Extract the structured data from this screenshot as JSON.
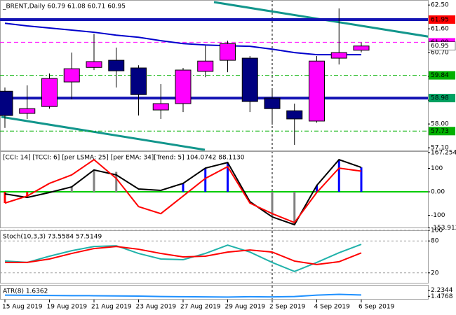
{
  "chart_data": [
    {
      "type": "candlestick",
      "title": "_BRENT,Daily  60.79 61.08 60.71 60.95",
      "categories": [
        "15 Aug 2019",
        null,
        "19 Aug 2019",
        null,
        "21 Aug 2019",
        null,
        "23 Aug 2019",
        null,
        "27 Aug 2019",
        null,
        "29 Aug 2019",
        null,
        "2 Sep 2019",
        null,
        "4 Sep 2019",
        null,
        "6 Sep 2019"
      ],
      "open": [
        59.24,
        58.4,
        58.66,
        59.59,
        60.14,
        60.41,
        60.12,
        58.53,
        58.77,
        59.99,
        60.41,
        60.49,
        58.98,
        58.5,
        58.11,
        60.49,
        60.79
      ],
      "high": [
        59.38,
        59.46,
        59.91,
        60.7,
        61.41,
        60.89,
        60.22,
        59.51,
        60.12,
        60.96,
        61.15,
        60.57,
        59.3,
        58.77,
        60.57,
        62.37,
        61.08
      ],
      "low": [
        57.85,
        58.19,
        58.58,
        58.93,
        60.04,
        59.38,
        58.32,
        58.19,
        58.45,
        59.77,
        59.96,
        58.45,
        57.97,
        57.21,
        58.05,
        60.25,
        60.71
      ],
      "close": [
        58.32,
        58.58,
        59.72,
        60.09,
        60.36,
        60.01,
        59.11,
        58.77,
        60.04,
        60.38,
        61.04,
        58.85,
        58.58,
        58.19,
        60.38,
        60.7,
        60.95
      ],
      "up_color": "#ff00ff",
      "down_color": "#000080",
      "series": [
        {
          "color": "#0000cc",
          "values": [
            61.81,
            61.71,
            61.63,
            61.55,
            61.47,
            61.36,
            61.28,
            61.15,
            61.04,
            60.99,
            60.96,
            60.94,
            60.83,
            60.7,
            60.62,
            60.62,
            60.62
          ]
        }
      ],
      "levels": [
        {
          "value": 61.95,
          "color": "#1414b4",
          "style": "solid",
          "label_color": "#ff0000"
        },
        {
          "value": 61.09,
          "color": "#ff00ff",
          "style": "dash",
          "label_color": "#ff00ff"
        },
        {
          "value": 59.84,
          "color": "#00b000",
          "style": "dashdot",
          "label_color": "#00b000"
        },
        {
          "value": 58.98,
          "color": "#1414b4",
          "style": "solid",
          "label_color": "#00a060"
        },
        {
          "value": 57.73,
          "color": "#00b000",
          "style": "dashdot",
          "label_color": "#00b000"
        }
      ],
      "ylim": [
        56.97,
        62.69
      ],
      "yticks": [
        {
          "value": 62.5,
          "label": "62.50"
        },
        {
          "value": 61.6,
          "label": "61.60"
        },
        {
          "value": 60.7,
          "label": "60.70"
        },
        {
          "value": 59.8,
          "label": "59.80"
        },
        {
          "value": 58.9,
          "label": "58.90"
        },
        {
          "value": 58,
          "label": "58.00"
        },
        {
          "value": 57.1,
          "label": "57.10"
        }
      ]
    },
    {
      "type": "cci",
      "title": "[CCI: 14] [TCCI: 6] [per LSMA: 25] [per EMA: 34][Trend: 5]  104.0742 88.1130",
      "histogram": {
        "values": [
          -48,
          -24,
          0,
          21,
          93,
          85,
          0,
          0,
          36,
          101,
          125,
          0,
          -107,
          -140,
          27,
          137,
          104
        ],
        "colors": [
          "#ff0000",
          "#ff0000",
          "#00cc00",
          "#808080",
          "#808080",
          "#808080",
          "#00cc00",
          "#00cc00",
          "#0000ff",
          "#0000ff",
          "#0000ff",
          "#00cc00",
          "#808080",
          "#808080",
          "#0000ff",
          "#0000ff",
          "#0000ff"
        ]
      },
      "zero_color": "#00cc00",
      "series": [
        {
          "color": "#000000",
          "values": [
            -9,
            -24,
            -3,
            21,
            93,
            72,
            12,
            6,
            36,
            101,
            125,
            -42,
            -107,
            -140,
            27,
            137,
            104
          ]
        },
        {
          "color": "#ff0000",
          "values": [
            -48,
            -18,
            36,
            72,
            137,
            57,
            -63,
            -93,
            -18,
            57,
            107,
            -48,
            -93,
            -131,
            -3,
            101,
            88
          ]
        }
      ],
      "ylim": [
        -155,
        173
      ],
      "yticks": [
        167.2545,
        100,
        {
          "value": 0,
          "label": "0.00"
        },
        -100,
        -153.912
      ]
    },
    {
      "type": "stoch",
      "title": "Stoch(10,3,3) 73.5584 57.5149",
      "series": [
        {
          "color": "#20b2aa",
          "values": [
            42.2,
            39.6,
            51.3,
            61.7,
            69.6,
            70.9,
            56.5,
            46.1,
            44.8,
            56.5,
            72.2,
            59.1,
            39.6,
            22.6,
            39.6,
            57.8,
            73.56
          ]
        },
        {
          "color": "#ff0000",
          "values": [
            39.6,
            39.6,
            46.1,
            56.5,
            65.7,
            69.6,
            64.4,
            56.5,
            50.0,
            51.3,
            59.1,
            63.0,
            59.1,
            42.2,
            35.7,
            40.9,
            57.51
          ]
        }
      ],
      "ylim": [
        0,
        100
      ],
      "yticks": [
        100,
        80,
        20
      ],
      "grid": true
    },
    {
      "type": "line",
      "title": "ATR(8) 1.6362",
      "series": [
        {
          "color": "#1e90ff",
          "values": [
            1.62,
            1.6,
            1.58,
            1.56,
            1.55,
            1.52,
            1.5,
            1.45,
            1.42,
            1.4,
            1.38,
            1.42,
            1.4,
            1.45,
            1.62,
            1.72,
            1.64
          ]
        }
      ],
      "ylim": [
        1.06,
        2.91
      ],
      "yticks": [
        2.2344,
        1.4768
      ]
    }
  ]
}
